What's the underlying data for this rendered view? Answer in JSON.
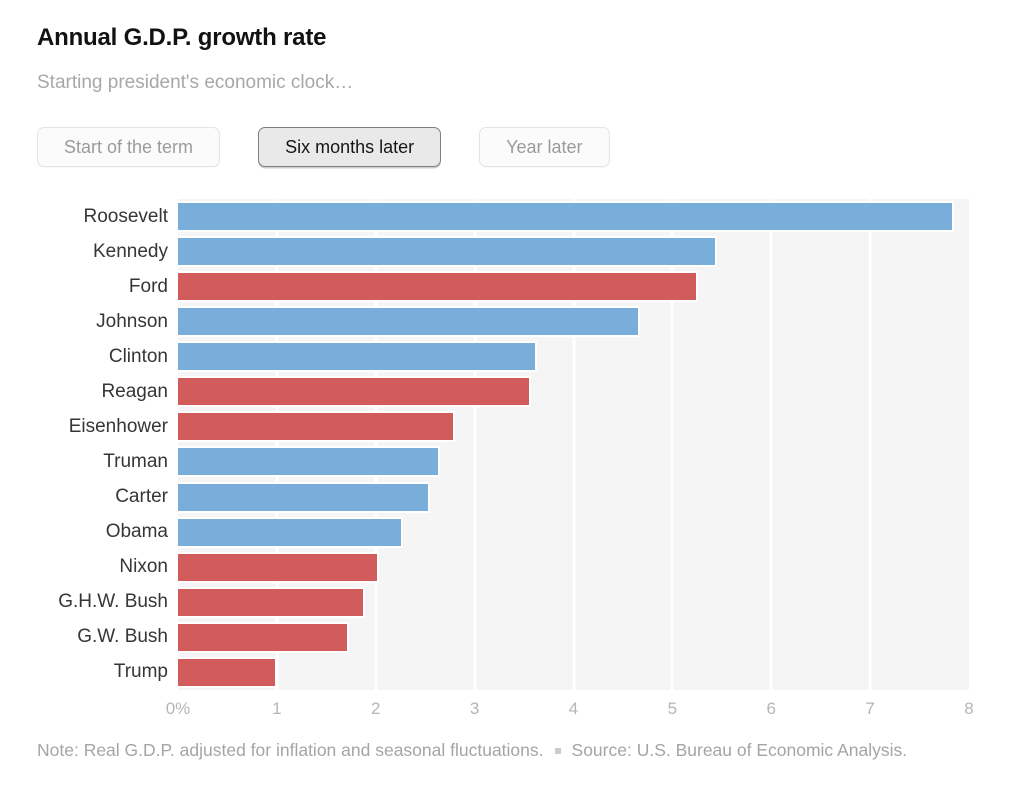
{
  "header": {
    "title": "Annual G.D.P. growth rate",
    "subtitle": "Starting president's economic clock…"
  },
  "tabs": [
    {
      "label": "Start of the term",
      "active": false
    },
    {
      "label": "Six months later",
      "active": true
    },
    {
      "label": "Year later",
      "active": false
    }
  ],
  "chart_data": {
    "type": "bar",
    "orientation": "horizontal",
    "title": "Annual G.D.P. growth rate",
    "selected_view": "Six months later",
    "categories": [
      "Roosevelt",
      "Kennedy",
      "Ford",
      "Johnson",
      "Clinton",
      "Reagan",
      "Eisenhower",
      "Truman",
      "Carter",
      "Obama",
      "Nixon",
      "G.H.W. Bush",
      "G.W. Bush",
      "Trump"
    ],
    "values": [
      7.85,
      5.45,
      5.26,
      4.67,
      3.63,
      3.57,
      2.8,
      2.65,
      2.55,
      2.28,
      2.03,
      1.89,
      1.73,
      1.0
    ],
    "parties": [
      "D",
      "D",
      "R",
      "D",
      "D",
      "R",
      "R",
      "D",
      "D",
      "D",
      "R",
      "R",
      "R",
      "R"
    ],
    "colors": {
      "democrat": "#79aedb",
      "republican": "#d25c5c"
    },
    "xlim": [
      0,
      8
    ],
    "x_ticks": [
      "0%",
      "1",
      "2",
      "3",
      "4",
      "5",
      "6",
      "7",
      "8"
    ],
    "grid": true,
    "plot_background": "#f5f5f5",
    "gridline_color": "#ffffff",
    "unit": "percent"
  },
  "footer": {
    "note": "Note: Real G.D.P. adjusted for inflation and seasonal fluctuations.",
    "source": "Source: U.S. Bureau of Economic Analysis."
  }
}
